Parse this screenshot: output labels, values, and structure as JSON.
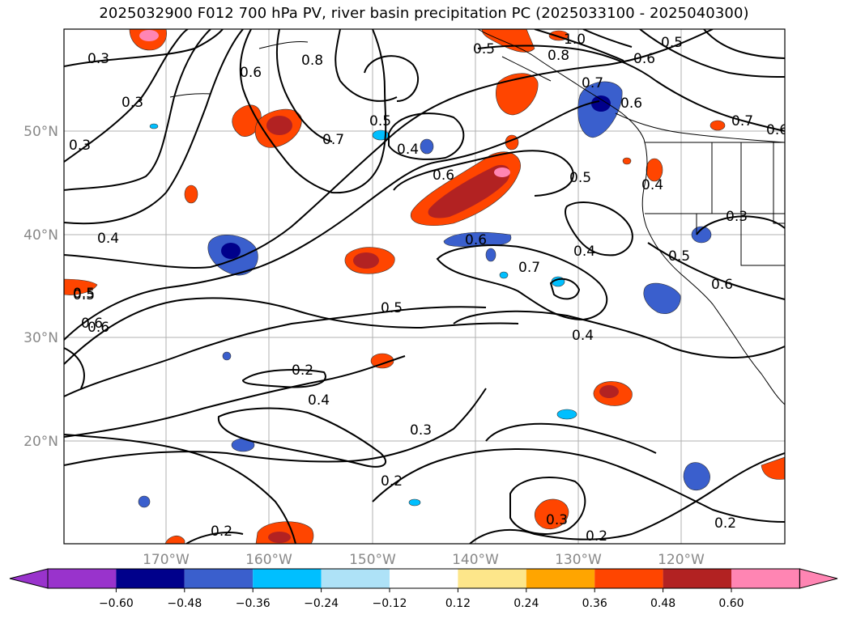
{
  "title": "2025032900 F012 700 hPa PV, river basin precipitation PC (2025033100 - 2025040300)",
  "map": {
    "lat_labels": [
      "50°N",
      "40°N",
      "30°N",
      "20°N"
    ],
    "lon_labels": [
      "170°W",
      "160°W",
      "150°W",
      "140°W",
      "130°W",
      "120°W"
    ],
    "contour_labels": [
      "0.3",
      "0.3",
      "0.3",
      "0.4",
      "0.5",
      "0.6",
      "0.6",
      "0.7",
      "0.8",
      "0.5",
      "0.4",
      "0.6",
      "0.5",
      "0.5",
      "1.0",
      "0.5",
      "0.6",
      "0.8",
      "0.7",
      "0.6",
      "0.7",
      "0.6",
      "0.5",
      "0.4",
      "0.3",
      "0.6",
      "0.4",
      "0.7",
      "0.6",
      "0.5",
      "0.5",
      "0.6",
      "0.4",
      "0.2",
      "0.4",
      "0.3",
      "0.2",
      "0.2",
      "0.3",
      "0.2",
      "0.2"
    ]
  },
  "colorbar": {
    "tick_labels": [
      "−0.60",
      "−0.48",
      "−0.36",
      "−0.24",
      "−0.12",
      "0.12",
      "0.24",
      "0.36",
      "0.48",
      "0.60"
    ],
    "colors": [
      "#9933cc",
      "#00008b",
      "#3a5fcd",
      "#00bfff",
      "#aee2f7",
      "#ffffff",
      "#fde68a",
      "#ffa500",
      "#ff4500",
      "#b22222",
      "#ff85b3"
    ]
  }
}
